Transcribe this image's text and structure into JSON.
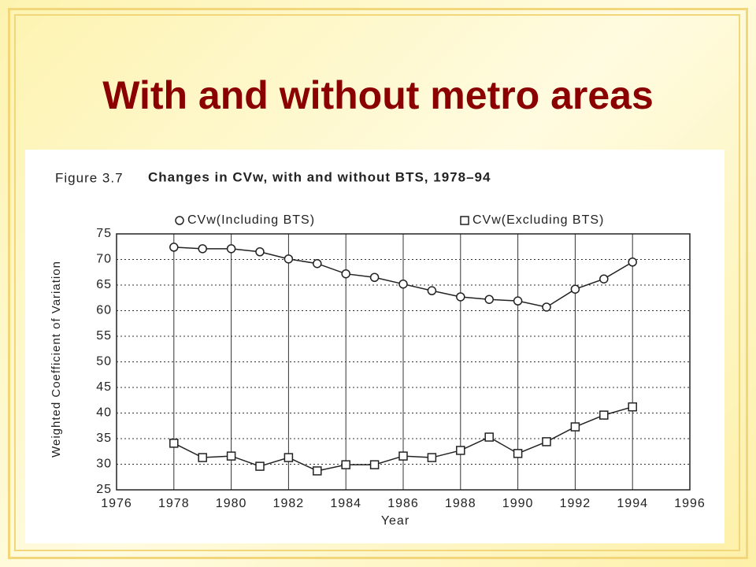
{
  "slide": {
    "title": "With and without metro areas"
  },
  "chart_data": {
    "type": "line",
    "figure_label": "Figure 3.7",
    "title": "Changes in CVw, with and without BTS, 1978–94",
    "x_label": "Year",
    "y_label": "Weighted Coefficient of Variation",
    "x": [
      1978,
      1979,
      1980,
      1981,
      1982,
      1983,
      1984,
      1985,
      1986,
      1987,
      1988,
      1989,
      1990,
      1991,
      1992,
      1993,
      1994
    ],
    "series": [
      {
        "name": "CVw(Including BTS)",
        "color": "#222222",
        "marker": "circle",
        "values": [
          72.4,
          72.1,
          72.1,
          71.5,
          70.1,
          69.2,
          67.2,
          66.5,
          65.2,
          63.9,
          62.7,
          62.2,
          61.9,
          60.7,
          64.2,
          66.2,
          69.5
        ]
      },
      {
        "name": "CVw(Excluding BTS)",
        "color": "#222222",
        "marker": "square",
        "values": [
          34.1,
          31.3,
          31.6,
          29.6,
          31.3,
          28.7,
          29.9,
          29.9,
          31.6,
          31.3,
          32.7,
          35.3,
          32.1,
          34.4,
          37.3,
          39.6,
          41.2
        ]
      }
    ],
    "xlim": [
      1976,
      1996
    ],
    "xticks": [
      1976,
      1978,
      1980,
      1982,
      1984,
      1986,
      1988,
      1990,
      1992,
      1994,
      1996
    ],
    "ylim": [
      25,
      75
    ],
    "yticks": [
      25,
      30,
      35,
      40,
      45,
      50,
      55,
      60,
      65,
      70,
      75
    ],
    "grid": true
  }
}
